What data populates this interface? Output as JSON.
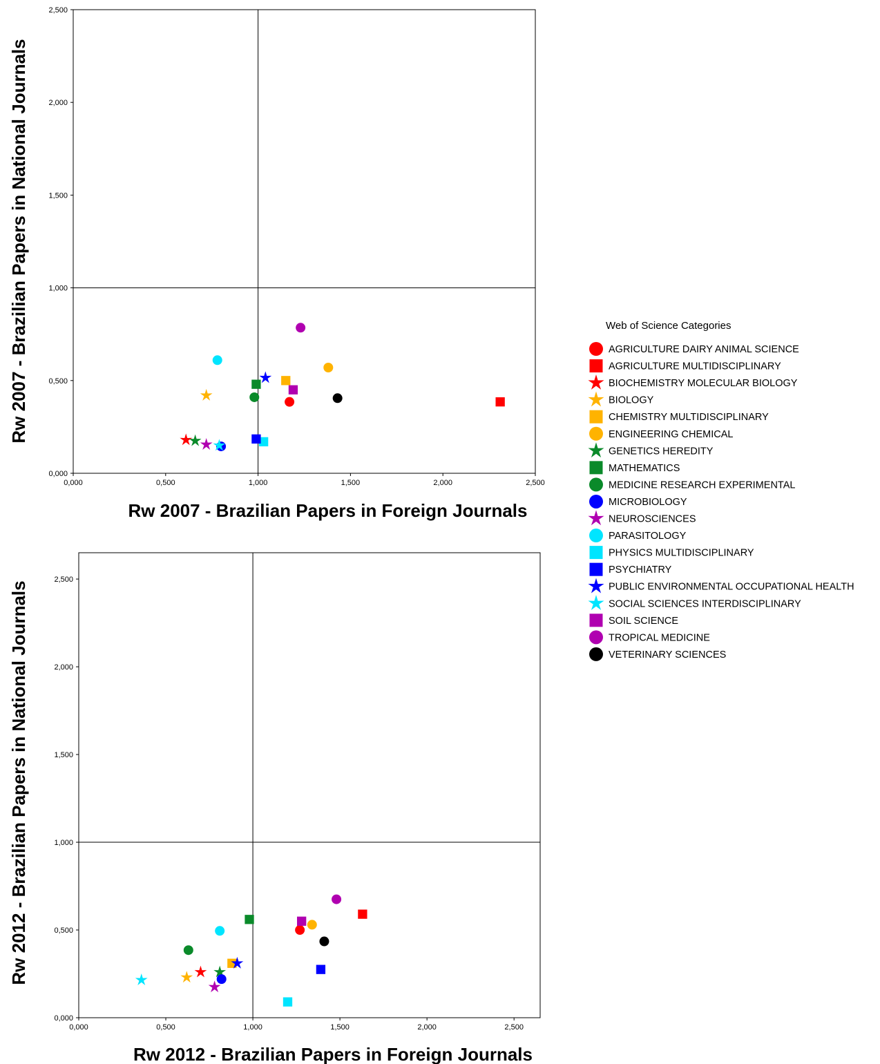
{
  "chart_data": [
    {
      "type": "scatter",
      "xlabel": "Rw 2007 - Brazilian Papers in Foreign Journals",
      "ylabel": "Rw 2007 - Brazilian Papers in National Journals",
      "xlim": [
        0,
        2.5
      ],
      "ylim": [
        0,
        2.5
      ],
      "xticks": [
        "0,000",
        "0,500",
        "1,000",
        "1,500",
        "2,000",
        "2,500"
      ],
      "yticks": [
        "0,000",
        "0,500",
        "1,000",
        "1,500",
        "2,000",
        "2,500"
      ],
      "reference_lines": {
        "x": 1.0,
        "y": 1.0
      },
      "grid": false,
      "points": [
        {
          "category": "AGRICULTURE DAIRY ANIMAL SCIENCE",
          "x": 1.17,
          "y": 0.385
        },
        {
          "category": "AGRICULTURE MULTIDISCIPLINARY",
          "x": 2.31,
          "y": 0.385
        },
        {
          "category": "BIOCHEMISTRY MOLECULAR BIOLOGY",
          "x": 0.61,
          "y": 0.18
        },
        {
          "category": "BIOLOGY",
          "x": 0.72,
          "y": 0.42
        },
        {
          "category": "CHEMISTRY MULTIDISCIPLINARY",
          "x": 1.15,
          "y": 0.5
        },
        {
          "category": "ENGINEERING CHEMICAL",
          "x": 1.38,
          "y": 0.57
        },
        {
          "category": "GENETICS HEREDITY",
          "x": 0.66,
          "y": 0.175
        },
        {
          "category": "MATHEMATICS",
          "x": 0.99,
          "y": 0.48
        },
        {
          "category": "MEDICINE RESEARCH EXPERIMENTAL",
          "x": 0.98,
          "y": 0.41
        },
        {
          "category": "MICROBIOLOGY",
          "x": 0.8,
          "y": 0.145
        },
        {
          "category": "NEUROSCIENCES",
          "x": 0.72,
          "y": 0.155
        },
        {
          "category": "PARASITOLOGY",
          "x": 0.78,
          "y": 0.61
        },
        {
          "category": "PHYSICS MULTIDISCIPLINARY",
          "x": 1.03,
          "y": 0.17
        },
        {
          "category": "PSYCHIATRY",
          "x": 0.99,
          "y": 0.185
        },
        {
          "category": "PUBLIC ENVIRONMENTAL OCCUPATIONAL HEALTH",
          "x": 1.04,
          "y": 0.515
        },
        {
          "category": "SOCIAL SCIENCES INTERDISCIPLINARY",
          "x": 0.79,
          "y": 0.15
        },
        {
          "category": "SOIL SCIENCE",
          "x": 1.19,
          "y": 0.45
        },
        {
          "category": "TROPICAL MEDICINE",
          "x": 1.23,
          "y": 0.785
        },
        {
          "category": "VETERINARY SCIENCES",
          "x": 1.43,
          "y": 0.405
        }
      ]
    },
    {
      "type": "scatter",
      "xlabel": "Rw 2012 - Brazilian Papers in Foreign Journals",
      "ylabel": "Rw 2012 - Brazilian Papers in National Journals",
      "xlim": [
        0,
        2.65
      ],
      "ylim": [
        0,
        2.65
      ],
      "xticks": [
        "0,000",
        "0,500",
        "1,000",
        "1,500",
        "2,000",
        "2,500"
      ],
      "yticks": [
        "0,000",
        "0,500",
        "1,000",
        "1,500",
        "2,000",
        "2,500"
      ],
      "reference_lines": {
        "x": 1.0,
        "y": 1.0
      },
      "grid": false,
      "points": [
        {
          "category": "AGRICULTURE DAIRY ANIMAL SCIENCE",
          "x": 1.27,
          "y": 0.5
        },
        {
          "category": "AGRICULTURE MULTIDISCIPLINARY",
          "x": 1.63,
          "y": 0.59
        },
        {
          "category": "BIOCHEMISTRY MOLECULAR BIOLOGY",
          "x": 0.7,
          "y": 0.26
        },
        {
          "category": "BIOLOGY",
          "x": 0.62,
          "y": 0.23
        },
        {
          "category": "CHEMISTRY MULTIDISCIPLINARY",
          "x": 0.88,
          "y": 0.31
        },
        {
          "category": "ENGINEERING CHEMICAL",
          "x": 1.34,
          "y": 0.53
        },
        {
          "category": "GENETICS HEREDITY",
          "x": 0.81,
          "y": 0.26
        },
        {
          "category": "MATHEMATICS",
          "x": 0.98,
          "y": 0.56
        },
        {
          "category": "MEDICINE RESEARCH EXPERIMENTAL",
          "x": 0.63,
          "y": 0.385
        },
        {
          "category": "MICROBIOLOGY",
          "x": 0.82,
          "y": 0.22
        },
        {
          "category": "NEUROSCIENCES",
          "x": 0.78,
          "y": 0.175
        },
        {
          "category": "PARASITOLOGY",
          "x": 0.81,
          "y": 0.495
        },
        {
          "category": "PHYSICS MULTIDISCIPLINARY",
          "x": 1.2,
          "y": 0.09
        },
        {
          "category": "PSYCHIATRY",
          "x": 1.39,
          "y": 0.275
        },
        {
          "category": "PUBLIC ENVIRONMENTAL OCCUPATIONAL HEALTH",
          "x": 0.91,
          "y": 0.31
        },
        {
          "category": "SOCIAL SCIENCES INTERDISCIPLINARY",
          "x": 0.36,
          "y": 0.215
        },
        {
          "category": "SOIL SCIENCE",
          "x": 1.28,
          "y": 0.55
        },
        {
          "category": "TROPICAL MEDICINE",
          "x": 1.48,
          "y": 0.675
        },
        {
          "category": "VETERINARY SCIENCES",
          "x": 1.41,
          "y": 0.435
        }
      ]
    }
  ],
  "legend": {
    "title": "Web of Science Categories",
    "placement": "right",
    "items": [
      {
        "label": "AGRICULTURE DAIRY ANIMAL SCIENCE",
        "shape": "circle",
        "color": "#ff0000"
      },
      {
        "label": "AGRICULTURE MULTIDISCIPLINARY",
        "shape": "square",
        "color": "#ff0000"
      },
      {
        "label": "BIOCHEMISTRY MOLECULAR BIOLOGY",
        "shape": "star",
        "color": "#ff0000"
      },
      {
        "label": "BIOLOGY",
        "shape": "star",
        "color": "#ffb300"
      },
      {
        "label": "CHEMISTRY MULTIDISCIPLINARY",
        "shape": "square",
        "color": "#ffb300"
      },
      {
        "label": "ENGINEERING CHEMICAL",
        "shape": "circle",
        "color": "#ffb300"
      },
      {
        "label": "GENETICS HEREDITY",
        "shape": "star",
        "color": "#0a8a2a"
      },
      {
        "label": "MATHEMATICS",
        "shape": "square",
        "color": "#0a8a2a"
      },
      {
        "label": "MEDICINE RESEARCH EXPERIMENTAL",
        "shape": "circle",
        "color": "#0a8a2a"
      },
      {
        "label": "MICROBIOLOGY",
        "shape": "circle",
        "color": "#0000ff"
      },
      {
        "label": "NEUROSCIENCES",
        "shape": "star",
        "color": "#b000b0"
      },
      {
        "label": "PARASITOLOGY",
        "shape": "circle",
        "color": "#00e5ff"
      },
      {
        "label": "PHYSICS MULTIDISCIPLINARY",
        "shape": "square",
        "color": "#00e5ff"
      },
      {
        "label": "PSYCHIATRY",
        "shape": "square",
        "color": "#0000ff"
      },
      {
        "label": "PUBLIC ENVIRONMENTAL OCCUPATIONAL HEALTH",
        "shape": "star",
        "color": "#0000ff"
      },
      {
        "label": "SOCIAL SCIENCES INTERDISCIPLINARY",
        "shape": "star",
        "color": "#00e5ff"
      },
      {
        "label": "SOIL SCIENCE",
        "shape": "square",
        "color": "#b000b0"
      },
      {
        "label": "TROPICAL MEDICINE",
        "shape": "circle",
        "color": "#b000b0"
      },
      {
        "label": "VETERINARY SCIENCES",
        "shape": "circle",
        "color": "#000000"
      }
    ]
  }
}
